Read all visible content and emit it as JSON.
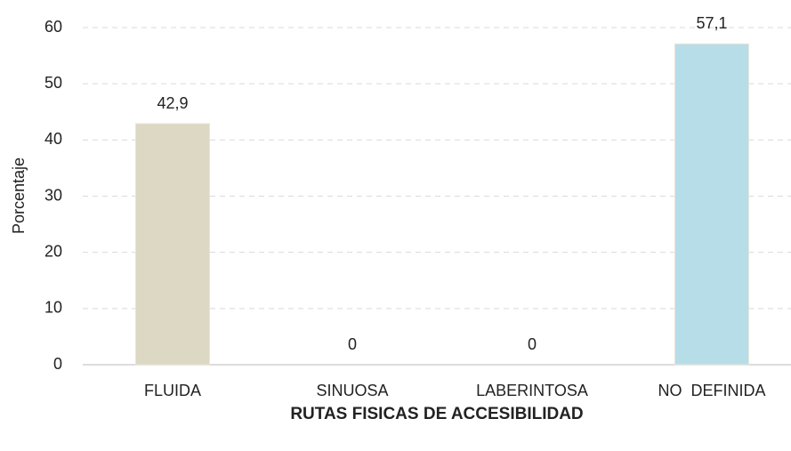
{
  "chart_data": {
    "type": "bar",
    "ylabel": "Porcentaje",
    "xlabel": "RUTAS FISICAS DE ACCESIBILIDAD",
    "categories": [
      "FLUIDA",
      "SINUOSA",
      "LABERINTOSA",
      "NO  DEFINIDA"
    ],
    "values": [
      42.9,
      0,
      0,
      57.1
    ],
    "value_labels": [
      "42,9",
      "0",
      "0",
      "57,1"
    ],
    "colors": [
      "#ddd8c4",
      "#ddd8c4",
      "#ddd8c4",
      "#b7dde8"
    ],
    "ylim": [
      0,
      60
    ],
    "yticks": [
      0,
      10,
      20,
      30,
      40,
      50,
      60
    ],
    "grid": true
  }
}
